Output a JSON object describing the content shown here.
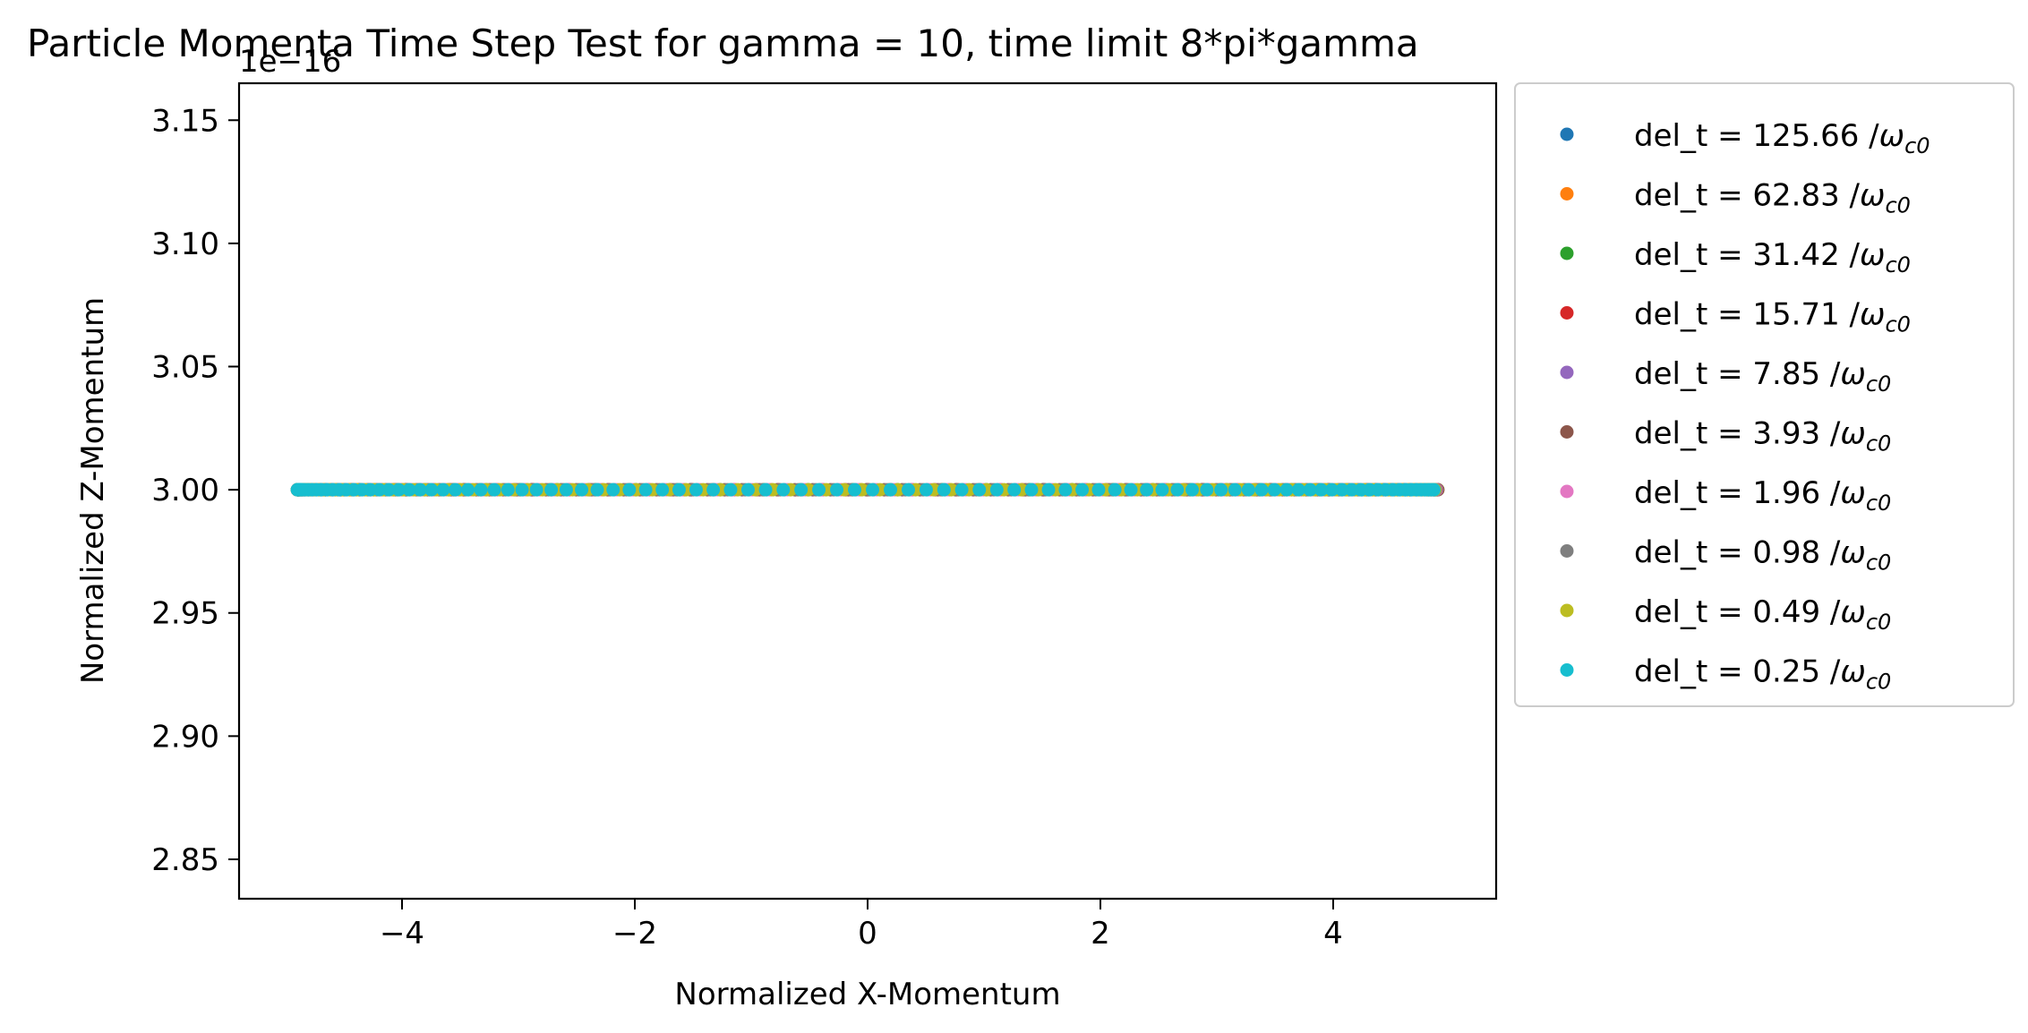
{
  "chart_data": {
    "type": "scatter",
    "title": "Particle Momenta Time Step Test for gamma = 10, time limit 8*pi*gamma",
    "xlabel": "Normalized X-Momentum",
    "ylabel": "Normalized Z-Momentum",
    "offset_text": "1e−16",
    "xlim": [
      -5.4,
      5.4
    ],
    "ylim": [
      2.834,
      3.165
    ],
    "y_scale_factor": 1e-16,
    "xticks": [
      -4,
      -2,
      0,
      2,
      4
    ],
    "xtick_labels": [
      "−4",
      "−2",
      "0",
      "2",
      "4"
    ],
    "yticks": [
      2.85,
      2.9,
      2.95,
      3.0,
      3.05,
      3.1,
      3.15
    ],
    "ytick_labels": [
      "2.85",
      "2.90",
      "2.95",
      "3.00",
      "3.05",
      "3.10",
      "3.15"
    ],
    "grid": false,
    "legend_position": "outside-right-top",
    "x_range_of_points": [
      -4.899,
      4.899
    ],
    "y_value_of_points": 3.0,
    "series": [
      {
        "name": "del_t = 125.66 /",
        "color": "#1f77b4"
      },
      {
        "name": "del_t = 62.83 /",
        "color": "#ff7f0e"
      },
      {
        "name": "del_t = 31.42 /",
        "color": "#2ca02c"
      },
      {
        "name": "del_t = 15.71 /",
        "color": "#d62728"
      },
      {
        "name": "del_t = 7.85 /",
        "color": "#9467bd"
      },
      {
        "name": "del_t = 3.93 /",
        "color": "#8c564b"
      },
      {
        "name": "del_t = 1.96 /",
        "color": "#e377c2"
      },
      {
        "name": "del_t = 0.98 /",
        "color": "#7f7f7f"
      },
      {
        "name": "del_t = 0.49 /",
        "color": "#bcbd22"
      },
      {
        "name": "del_t = 0.25 /",
        "color": "#17becf"
      }
    ],
    "legend_unit_symbol": "ω",
    "legend_unit_subscript": "c0"
  }
}
